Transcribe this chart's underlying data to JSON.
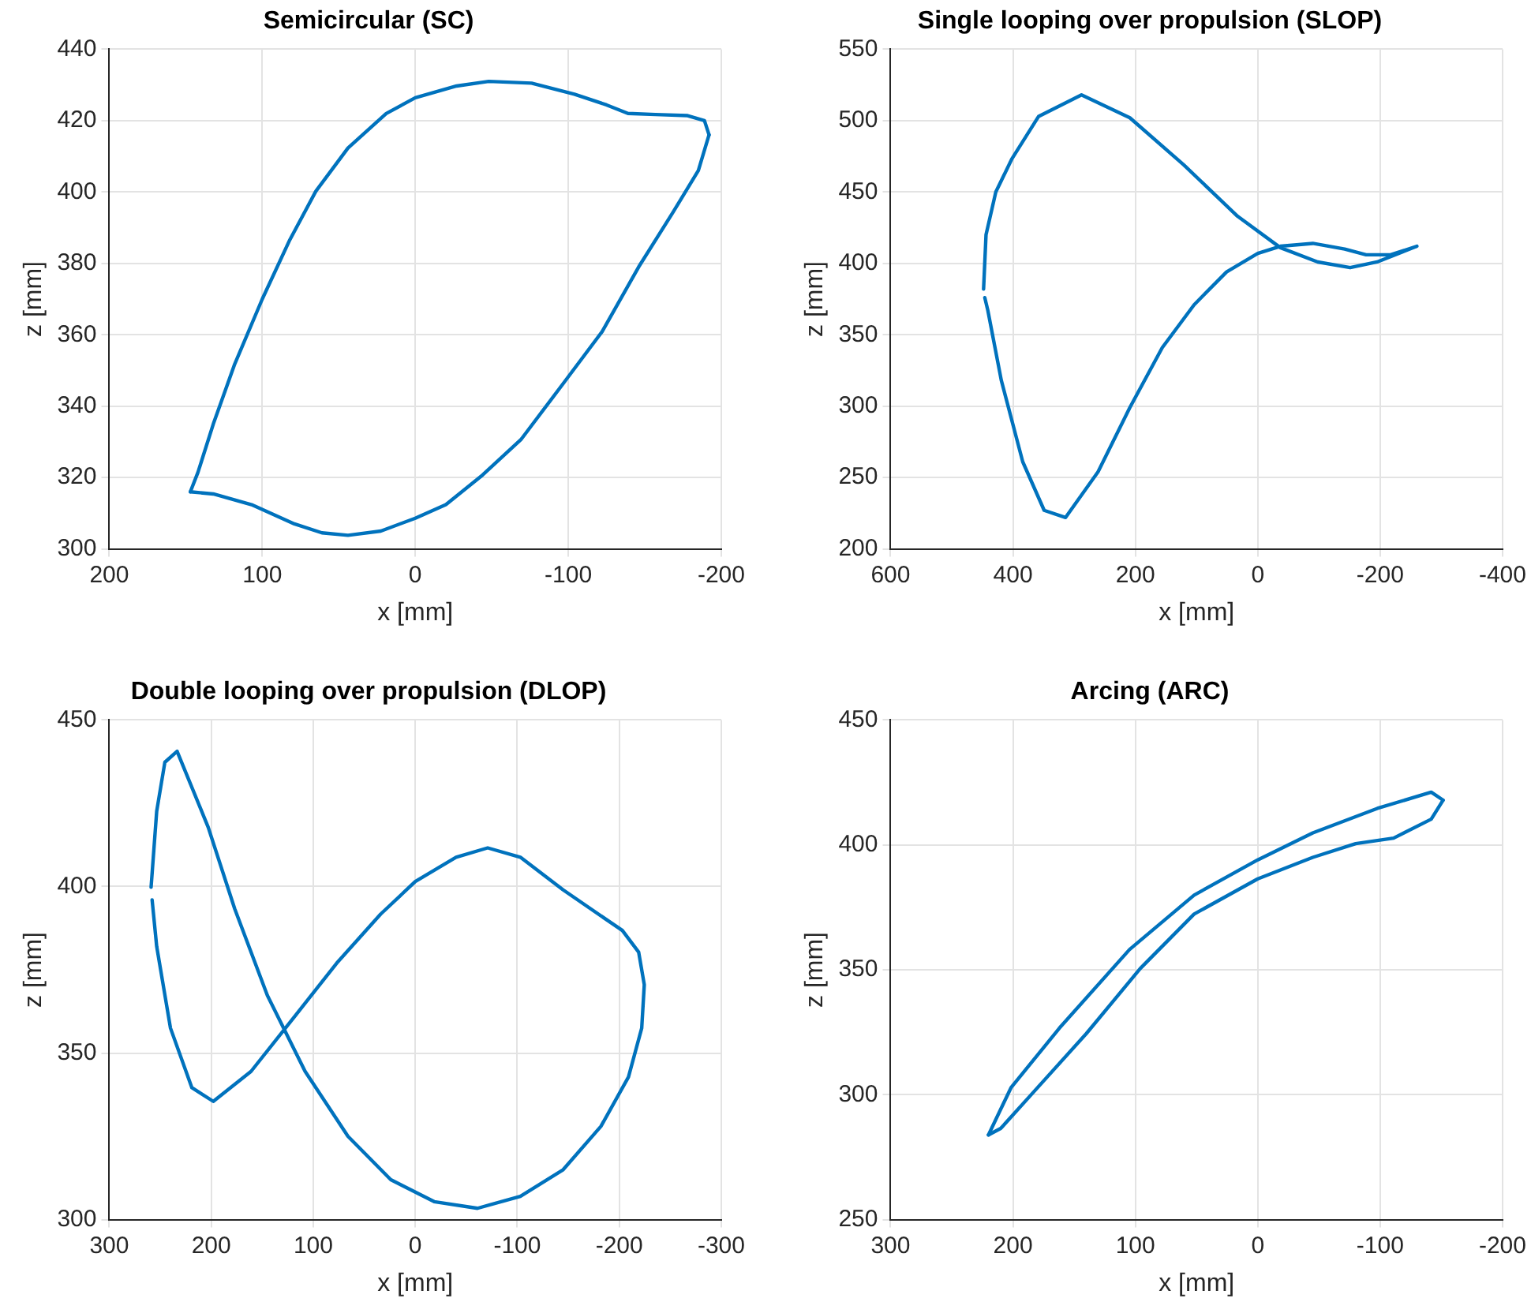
{
  "chart_data": [
    {
      "type": "line",
      "title": "Semicircular (SC)",
      "xlabel": "x [mm]",
      "ylabel": "z [mm]",
      "xlim": [
        200,
        -200
      ],
      "ylim": [
        300,
        440
      ],
      "xticks": [
        200,
        100,
        0,
        -100,
        -200
      ],
      "yticks": [
        300,
        320,
        340,
        360,
        380,
        400,
        420,
        440
      ],
      "grid": true,
      "series": [
        {
          "color": "#0072bd",
          "x": [
            147,
            132,
            107,
            79,
            61,
            44,
            22.5,
            0,
            -20,
            -44,
            -69,
            -97,
            -122,
            -146,
            -168,
            -185,
            -192
          ],
          "values": [
            316,
            315.4,
            312.4,
            307,
            304.5,
            303.8,
            305,
            308.6,
            312.4,
            320.7,
            330.6,
            346.5,
            360.8,
            379,
            394,
            406,
            416
          ]
        },
        {
          "color": "#0072bd",
          "x": [
            -192,
            -189,
            -178,
            -157,
            -139,
            -125,
            -104,
            -76,
            -48,
            -27,
            0,
            19,
            44,
            65,
            82,
            100,
            118,
            132,
            142,
            147
          ],
          "values": [
            416,
            420,
            421.4,
            421.7,
            422,
            424.4,
            427.4,
            430.5,
            431,
            429.7,
            426.4,
            422,
            412.3,
            400.2,
            386.6,
            370,
            351.8,
            335,
            321.5,
            316
          ]
        }
      ]
    },
    {
      "type": "line",
      "title": "Single looping over propulsion (SLOP)",
      "xlabel": "x [mm]",
      "ylabel": "z [mm]",
      "xlim": [
        600,
        -400
      ],
      "ylim": [
        200,
        550
      ],
      "xticks": [
        600,
        400,
        200,
        0,
        -200,
        -400
      ],
      "yticks": [
        200,
        250,
        300,
        350,
        400,
        450,
        500,
        550
      ],
      "grid": true,
      "series": [
        {
          "color": "#0072bd",
          "x": [
            448,
            444,
            428,
            402,
            358,
            288,
            209,
            121,
            33,
            -37,
            -98,
            -151,
            -195,
            -260,
            -217,
            -177,
            -142,
            -90,
            -37,
            0,
            51,
            104,
            156,
            209,
            261,
            314,
            349,
            384,
            419,
            441,
            446
          ],
          "values": [
            382,
            420,
            450,
            473,
            503,
            518,
            502,
            469,
            433,
            411,
            401,
            397,
            401,
            412,
            406,
            406,
            410,
            414,
            412,
            407,
            394,
            371,
            341,
            299,
            254,
            222,
            227,
            261,
            318,
            367,
            376
          ]
        }
      ]
    },
    {
      "type": "line",
      "title": "Double looping over propulsion (DLOP)",
      "xlabel": "x [mm]",
      "ylabel": "z [mm]",
      "xlim": [
        300,
        -300
      ],
      "ylim": [
        300,
        450
      ],
      "xticks": [
        300,
        200,
        100,
        0,
        -100,
        -200,
        -300
      ],
      "yticks": [
        300,
        350,
        400,
        450
      ],
      "grid": true,
      "series": [
        {
          "color": "#0072bd",
          "x": [
            259,
            253.5,
            245.5,
            233.5,
            203,
            177,
            145,
            108,
            66,
            24,
            -18.5,
            -61,
            -103,
            -145,
            -182,
            -209,
            -222,
            -224.5,
            -219,
            -203,
            -172,
            -145,
            -103,
            -71,
            -40,
            0,
            34,
            77,
            119,
            161,
            198,
            219,
            240,
            253.5,
            258
          ],
          "values": [
            399.8,
            422.6,
            437.3,
            440.6,
            417.8,
            393.3,
            367.3,
            344.5,
            325,
            312,
            305.4,
            303.4,
            307,
            315,
            328,
            342.8,
            357.5,
            370.5,
            380.3,
            386.8,
            393.3,
            399,
            408.8,
            411.6,
            408.8,
            401.5,
            391.7,
            377,
            360.7,
            344.5,
            335.5,
            339.6,
            357.5,
            382,
            396
          ]
        }
      ]
    },
    {
      "type": "line",
      "title": "Arcing (ARC)",
      "xlabel": "x [mm]",
      "ylabel": "z [mm]",
      "xlim": [
        300,
        -200
      ],
      "ylim": [
        250,
        450
      ],
      "xticks": [
        300,
        200,
        100,
        0,
        -100,
        -200
      ],
      "yticks": [
        250,
        300,
        350,
        400,
        450
      ],
      "grid": true,
      "series": [
        {
          "color": "#0072bd",
          "x": [
            220,
            201.6,
            162,
            104.8,
            52,
            0,
            -45,
            -97.7,
            -141.7,
            -151.4
          ],
          "values": [
            283.9,
            302.8,
            326.7,
            358.1,
            379.9,
            394,
            404.8,
            414.6,
            421.1,
            417.9
          ]
        },
        {
          "color": "#0072bd",
          "x": [
            -151.4,
            -141.7,
            -111,
            -80,
            -45,
            0,
            52,
            96,
            140,
            184,
            210,
            220
          ],
          "values": [
            417.9,
            410.3,
            402.7,
            400.5,
            395,
            386.4,
            372.3,
            350.5,
            324.5,
            300.6,
            286.5,
            283.9
          ]
        }
      ]
    }
  ]
}
